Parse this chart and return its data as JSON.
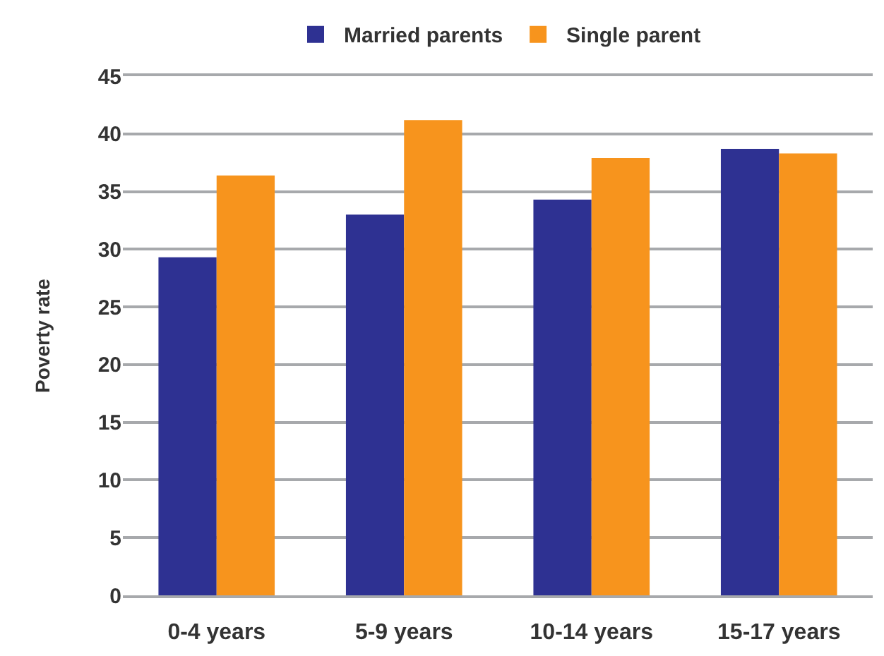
{
  "chart_data": {
    "type": "bar",
    "ylabel": "Poverty rate",
    "categories": [
      "0-4 years",
      "5-9 years",
      "10-14 years",
      "15-17 years"
    ],
    "series": [
      {
        "name": "Married parents",
        "color": "#2e3192",
        "values": [
          29.3,
          33.0,
          34.3,
          38.7
        ]
      },
      {
        "name": "Single parent",
        "color": "#f7941d",
        "values": [
          36.4,
          41.2,
          37.9,
          38.3
        ]
      }
    ],
    "ylim": [
      0,
      45
    ],
    "yticks": [
      0,
      5,
      10,
      15,
      20,
      25,
      30,
      35,
      40,
      45
    ],
    "grid": "y",
    "legend": "top"
  }
}
